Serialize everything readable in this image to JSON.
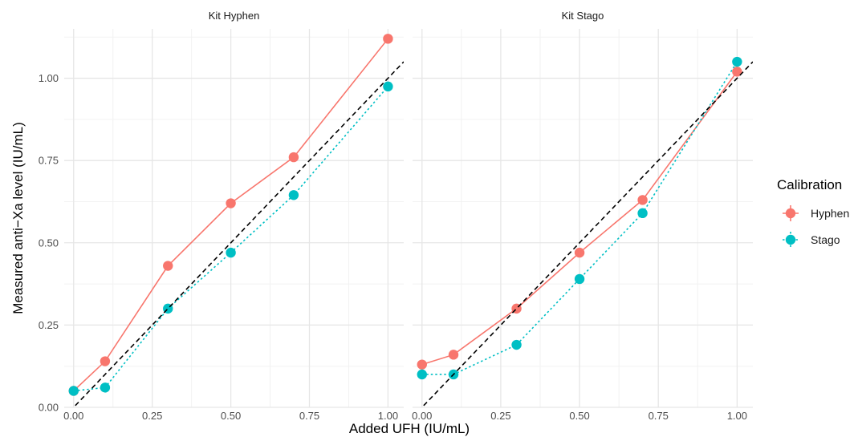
{
  "chart_data": {
    "type": "line",
    "ylabel": "Measured anti−Xa level (IU/mL)",
    "xlabel": "Added UFH (IU/mL)",
    "xlim": [
      -0.03,
      1.05
    ],
    "ylim": [
      0,
      1.15
    ],
    "x_ticks": [
      "0.00",
      "0.25",
      "0.50",
      "0.75",
      "1.00"
    ],
    "y_ticks": [
      "0.00",
      "0.25",
      "0.50",
      "0.75",
      "1.00"
    ],
    "grid": true,
    "legend": {
      "title": "Calibration",
      "position": "right",
      "entries": [
        "Hyphen",
        "Stago"
      ]
    },
    "reference_line": {
      "slope": 1,
      "intercept": 0,
      "style": "dashed",
      "color": "#000000"
    },
    "panels": [
      {
        "title": "Kit Hyphen",
        "series": [
          {
            "name": "Hyphen",
            "color": "#F8766D",
            "line": "solid",
            "x": [
              0,
              0.1,
              0.3,
              0.5,
              0.7,
              1.0
            ],
            "y": [
              0.05,
              0.14,
              0.43,
              0.62,
              0.76,
              1.12
            ]
          },
          {
            "name": "Stago",
            "color": "#00BFC4",
            "line": "dotted",
            "x": [
              0,
              0.1,
              0.3,
              0.5,
              0.7,
              1.0
            ],
            "y": [
              0.05,
              0.06,
              0.3,
              0.47,
              0.645,
              0.975
            ]
          }
        ]
      },
      {
        "title": "Kit Stago",
        "series": [
          {
            "name": "Hyphen",
            "color": "#F8766D",
            "line": "solid",
            "x": [
              0,
              0.1,
              0.3,
              0.5,
              0.7,
              1.0
            ],
            "y": [
              0.13,
              0.16,
              0.3,
              0.47,
              0.63,
              1.02
            ]
          },
          {
            "name": "Stago",
            "color": "#00BFC4",
            "line": "dotted",
            "x": [
              0,
              0.1,
              0.3,
              0.5,
              0.7,
              1.0
            ],
            "y": [
              0.1,
              0.1,
              0.19,
              0.39,
              0.59,
              1.05
            ]
          }
        ]
      }
    ]
  }
}
